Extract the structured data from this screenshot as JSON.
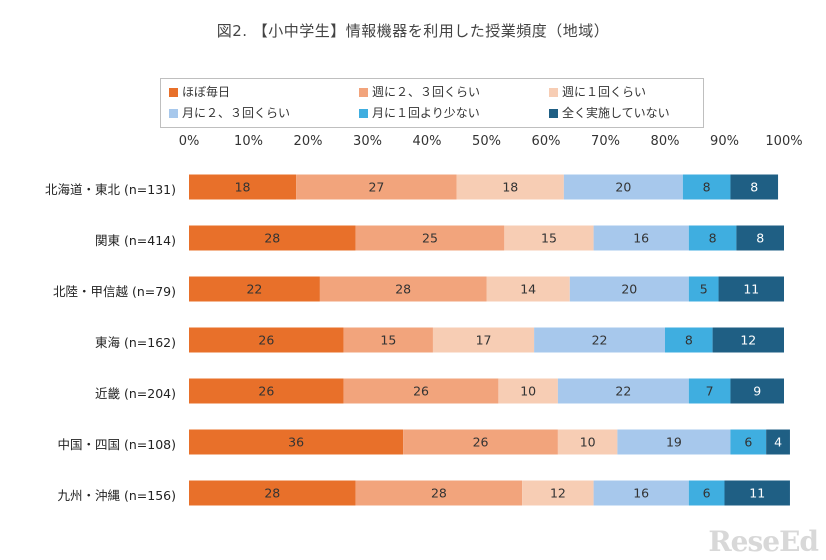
{
  "chart_data": {
    "type": "bar",
    "orientation": "horizontal",
    "stacked": true,
    "title": "図2. 【小中学生】情報機器を利用した授業頻度（地域）",
    "xlim": [
      0,
      100
    ],
    "x_ticks": [
      "0%",
      "10%",
      "20%",
      "30%",
      "40%",
      "50%",
      "60%",
      "70%",
      "80%",
      "90%",
      "100%"
    ],
    "grid": false,
    "legend_position": "top",
    "categories": [
      "北海道・東北 (n=131)",
      "関東 (n=414)",
      "北陸・甲信越 (n=79)",
      "東海 (n=162)",
      "近畿 (n=204)",
      "中国・四国 (n=108)",
      "九州・沖縄 (n=156)"
    ],
    "series": [
      {
        "name": "ほぼ毎日",
        "color": "#E8702A",
        "label_color": "#333333",
        "values": [
          18,
          28,
          22,
          26,
          26,
          36,
          28
        ]
      },
      {
        "name": "週に２、３回くらい",
        "color": "#F2A47C",
        "label_color": "#333333",
        "values": [
          27,
          25,
          28,
          15,
          26,
          26,
          28
        ]
      },
      {
        "name": "週に１回くらい",
        "color": "#F7CDB4",
        "label_color": "#333333",
        "values": [
          18,
          15,
          14,
          17,
          10,
          10,
          12
        ]
      },
      {
        "name": "月に２、３回くらい",
        "color": "#A7C8EC",
        "label_color": "#333333",
        "values": [
          20,
          16,
          20,
          22,
          22,
          19,
          16
        ]
      },
      {
        "name": "月に１回より少ない",
        "color": "#3FAEE0",
        "label_color": "#333333",
        "values": [
          8,
          8,
          5,
          8,
          7,
          6,
          6
        ]
      },
      {
        "name": "全く実施していない",
        "color": "#1F5F84",
        "label_color": "#ffffff",
        "values": [
          8,
          8,
          11,
          12,
          9,
          4,
          11
        ]
      }
    ]
  },
  "watermark": "ReseEd"
}
